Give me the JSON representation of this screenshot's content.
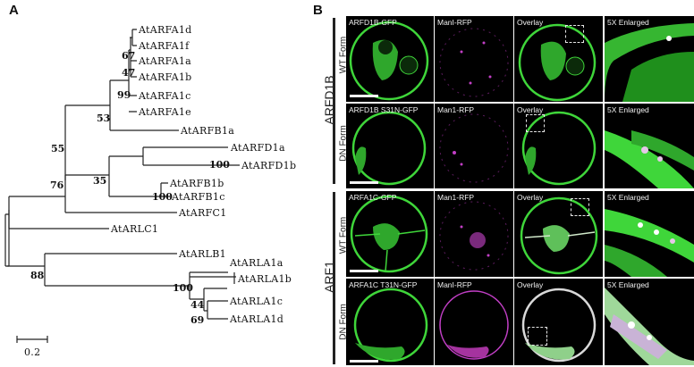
{
  "panels": {
    "a": "A",
    "b": "B"
  },
  "tree": {
    "taxa": [
      "AtARFA1d",
      "AtARFA1f",
      "AtARFA1a",
      "AtARFA1b",
      "AtARFA1c",
      "AtARFA1e",
      "AtARFB1a",
      "AtARFD1a",
      "AtARFD1b",
      "AtARFB1b",
      "AtARFB1c",
      "AtARFC1",
      "AtARLC1",
      "AtARLB1",
      "AtARLA1a",
      "AtARLA1b",
      "AtARLA1c",
      "AtARLA1d"
    ],
    "bootstrap": [
      "67",
      "47",
      "99",
      "53",
      "55",
      "100",
      "35",
      "100",
      "76",
      "100",
      "88",
      "44",
      "69"
    ],
    "scale_label": "0.2"
  },
  "groups": {
    "arfd1b": "ARFD1B",
    "arf1": "ARF1"
  },
  "forms": {
    "wt": "WT Form",
    "dn": "DN Form"
  },
  "rows": [
    {
      "labels": [
        "ARFD1B-GFP",
        "ManI-RFP",
        "Overlay",
        "5X Enlarged"
      ]
    },
    {
      "labels": [
        "ARFD1B S31N-GFP",
        "Man1-RFP",
        "Overlay",
        "5X Enlarged"
      ]
    },
    {
      "labels": [
        "ARFA1C-GFP",
        "Man1-RFP",
        "Overlay",
        "5X Enlarged"
      ]
    },
    {
      "labels": [
        "ARFA1C T31N-GFP",
        "ManI-RFP",
        "Overlay",
        "5X Enlarged"
      ]
    }
  ],
  "colors": {
    "gfp": "#3fd63a",
    "rfp": "#c23fc6",
    "overlay": "#cfe8c9",
    "background": "#000000"
  }
}
